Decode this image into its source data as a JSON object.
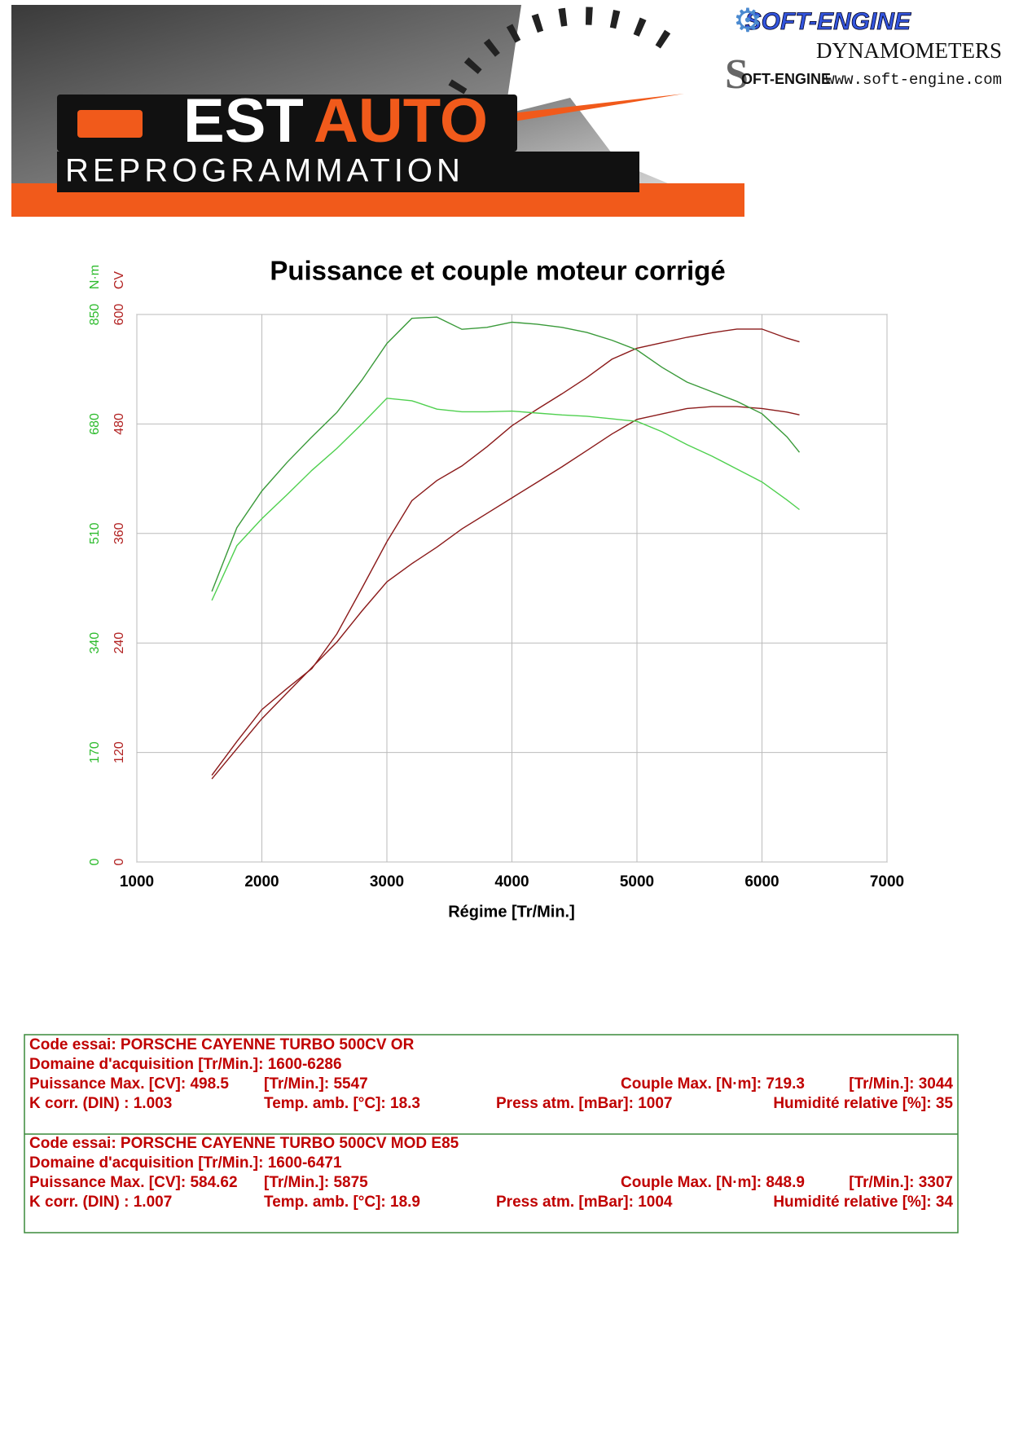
{
  "header": {
    "est": "EST",
    "auto": "AUTO",
    "reprog": "REPROGRAMMATION",
    "brand": "SOFT-ENGINE",
    "dyn": "DYNAMOMETERS",
    "url": "www.soft-engine.com",
    "mark": "OFT-ENGINE"
  },
  "chart_data": {
    "type": "line",
    "title": "Puissance et couple moteur corrigé",
    "xlabel": "Régime [Tr/Min.]",
    "ylabel": "CV",
    "y2label": "N·m",
    "xlim": [
      1000,
      7000
    ],
    "xticks": [
      1000,
      2000,
      3000,
      4000,
      5000,
      6000,
      7000
    ],
    "ylim": [
      0,
      600
    ],
    "yticks": [
      0,
      120,
      240,
      360,
      480,
      600
    ],
    "y2lim": [
      0,
      850
    ],
    "y2ticks": [
      0,
      170,
      340,
      510,
      680,
      850
    ],
    "ycolor": "#b22222",
    "y2color": "#2dbb2d",
    "grid": true,
    "x": [
      1600,
      1800,
      2000,
      2200,
      2400,
      2600,
      2800,
      3000,
      3200,
      3400,
      3600,
      3800,
      4000,
      4200,
      4400,
      4600,
      4800,
      5000,
      5200,
      5400,
      5600,
      5800,
      6000,
      6200,
      6300
    ],
    "series": [
      {
        "color": "#8b1a1a",
        "axis": "y",
        "values": [
          95,
          132,
          167,
          190,
          212,
          250,
          300,
          351,
          396,
          418,
          434,
          455,
          478,
          496,
          513,
          531,
          551,
          563,
          569,
          575,
          580,
          584,
          584,
          574,
          570
        ]
      },
      {
        "color": "#8b1a1a",
        "axis": "y",
        "values": [
          91,
          124,
          157,
          185,
          213,
          241,
          275,
          307,
          327,
          345,
          365,
          382,
          399,
          416,
          433,
          451,
          469,
          485,
          491,
          497,
          499,
          499,
          497,
          493,
          490
        ]
      },
      {
        "color": "#3a9a3a",
        "axis": "y2",
        "values": [
          420,
          519,
          576,
          620,
          660,
          698,
          748,
          805,
          844,
          846,
          827,
          830,
          838,
          835,
          830,
          822,
          810,
          795,
          768,
          745,
          730,
          715,
          696,
          660,
          636
        ]
      },
      {
        "color": "#4fd04f",
        "axis": "y2",
        "values": [
          406,
          491,
          533,
          570,
          608,
          642,
          680,
          720,
          716,
          703,
          699,
          699,
          700,
          697,
          694,
          692,
          688,
          684,
          668,
          648,
          630,
          610,
          590,
          562,
          547
        ]
      }
    ]
  },
  "tests": [
    {
      "code": "Code essai: PORSCHE CAYENNE TURBO 500CV OR",
      "domain": "Domaine d'acquisition [Tr/Min.]: 1600-6286",
      "power": "Puissance Max. [CV]: 498.5",
      "power_rpm": "[Tr/Min.]: 5547",
      "torque": "Couple Max. [N·m]: 719.3",
      "torque_rpm": "[Tr/Min.]: 3044",
      "kcorr": "K corr. (DIN) : 1.003",
      "temp": "Temp. amb. [°C]: 18.3",
      "press": "Press atm. [mBar]: 1007",
      "humidity": "Humidité relative [%]: 35"
    },
    {
      "code": "Code essai: PORSCHE CAYENNE TURBO 500CV MOD E85",
      "domain": "Domaine d'acquisition [Tr/Min.]: 1600-6471",
      "power": "Puissance Max. [CV]: 584.62",
      "power_rpm": "[Tr/Min.]: 5875",
      "torque": "Couple Max. [N·m]: 848.9",
      "torque_rpm": "[Tr/Min.]: 3307",
      "kcorr": "K corr. (DIN) : 1.007",
      "temp": "Temp. amb. [°C]: 18.9",
      "press": "Press atm. [mBar]: 1004",
      "humidity": "Humidité relative [%]: 34"
    }
  ]
}
